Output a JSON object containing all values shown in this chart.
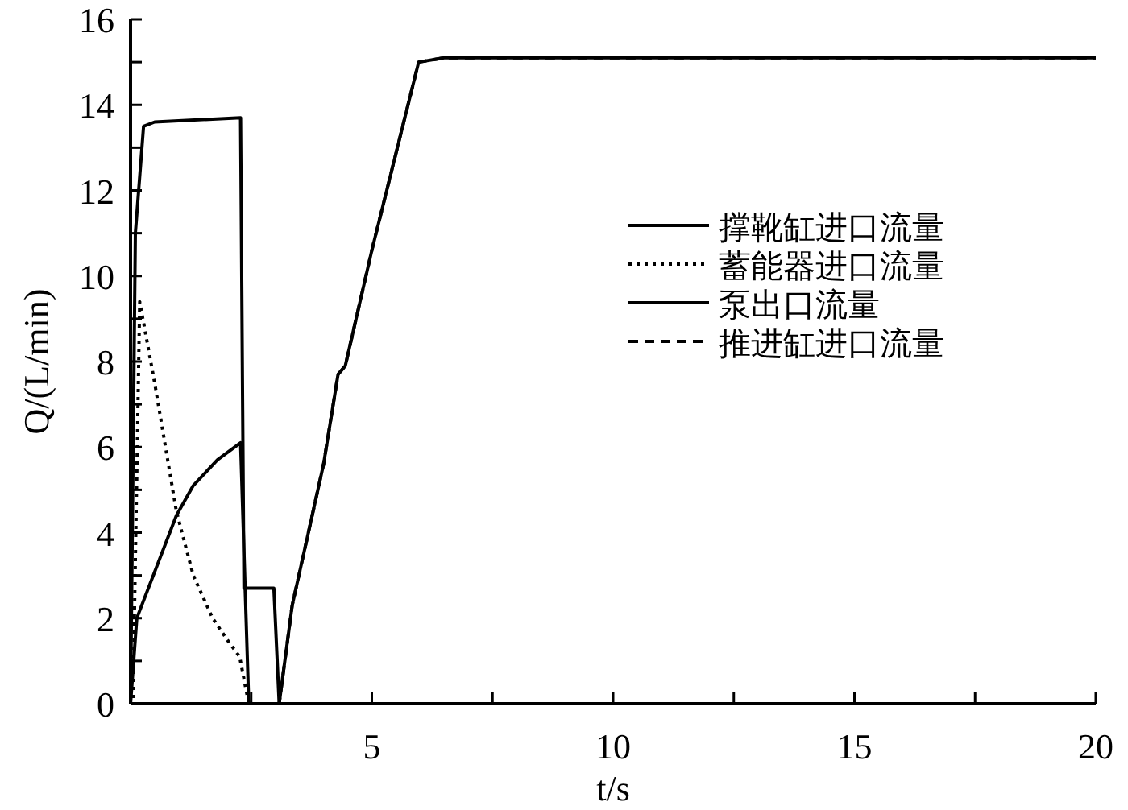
{
  "chart_data": {
    "type": "line",
    "xlabel": "t/s",
    "ylabel": "Q/(L/min)",
    "xlim": [
      0,
      20
    ],
    "ylim": [
      0,
      16
    ],
    "xticks": [
      {
        "value": 2.5,
        "label": null
      },
      5,
      {
        "value": 7.5,
        "label": null
      },
      10,
      {
        "value": 12.5,
        "label": null
      },
      15,
      {
        "value": 17.5,
        "label": null
      },
      20
    ],
    "yticks": [
      0,
      {
        "value": 1,
        "label": null
      },
      2,
      {
        "value": 3,
        "label": null
      },
      4,
      {
        "value": 5,
        "label": null
      },
      6,
      {
        "value": 7,
        "label": null
      },
      8,
      {
        "value": 9,
        "label": null
      },
      10,
      {
        "value": 11,
        "label": null
      },
      12,
      {
        "value": 13,
        "label": null
      },
      14,
      {
        "value": 15,
        "label": null
      },
      16
    ],
    "grid": false,
    "legend": "right",
    "marker": "none",
    "series": [
      {
        "name": "撑靴缸进口流量",
        "color": "#000000",
        "line_style": "solid",
        "x": [
          0,
          0.13,
          0.95,
          1.3,
          1.8,
          2.28,
          2.45
        ],
        "values": [
          0,
          2.0,
          4.4,
          5.1,
          5.7,
          6.1,
          0
        ]
      },
      {
        "name": "蓄能器进口流量",
        "color": "#000000",
        "line_style": "dotted",
        "x": [
          0,
          0.05,
          0.19,
          0.5,
          0.95,
          1.3,
          1.7,
          2.0,
          2.26,
          2.45
        ],
        "values": [
          0,
          0,
          9.4,
          7.5,
          4.5,
          3.0,
          2.0,
          1.5,
          1.1,
          0
        ]
      },
      {
        "name": "泵出口流量",
        "color": "#000000",
        "line_style": "solid",
        "x": [
          0,
          0.1,
          0.27,
          0.5,
          2.28,
          2.35,
          2.97,
          3.08,
          3.35,
          4.0,
          4.3,
          4.45,
          5.0,
          5.97,
          6.5,
          20
        ],
        "values": [
          0,
          11,
          13.5,
          13.6,
          13.7,
          2.7,
          2.7,
          0,
          2.3,
          5.6,
          7.7,
          7.9,
          10.6,
          15.0,
          15.1,
          15.1
        ]
      },
      {
        "name": "推进缸进口流量",
        "color": "#000000",
        "line_style": "dashed",
        "x": [
          0,
          3.08,
          3.35,
          4.0,
          4.3,
          4.45,
          5.0,
          5.97,
          6.5,
          20
        ],
        "values": [
          0,
          0,
          2.3,
          5.6,
          7.7,
          7.9,
          10.6,
          15.0,
          15.1,
          15.1
        ]
      }
    ]
  }
}
